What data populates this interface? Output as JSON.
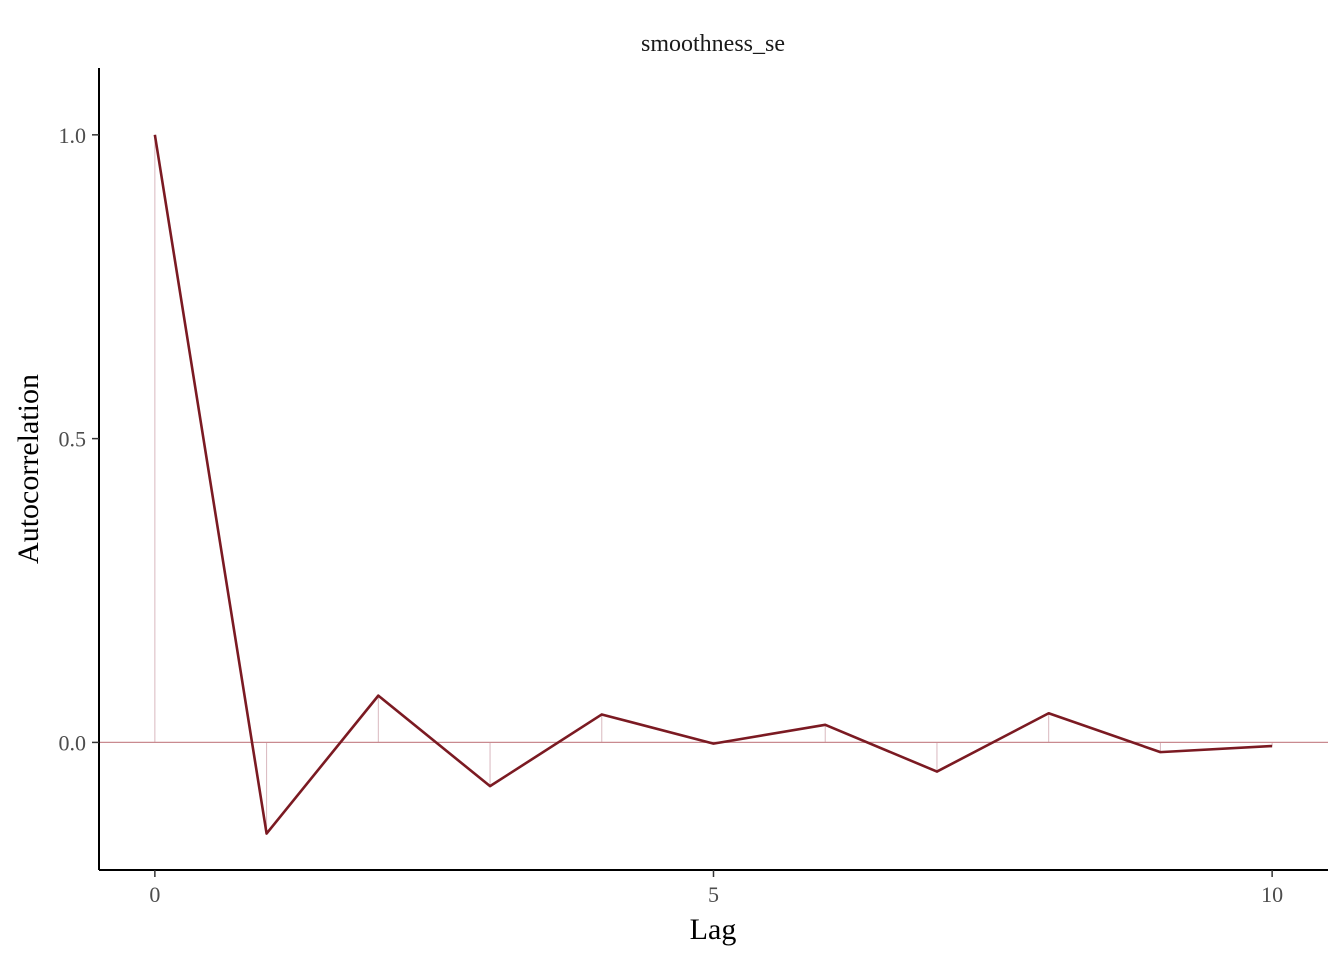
{
  "chart_data": {
    "type": "line",
    "title": "smoothness_se",
    "xlabel": "Lag",
    "ylabel": "Autocorrelation",
    "x": [
      0,
      1,
      2,
      3,
      4,
      5,
      6,
      7,
      8,
      9,
      10
    ],
    "values": [
      1.0,
      -0.15,
      0.077,
      -0.072,
      0.046,
      -0.002,
      0.029,
      -0.048,
      0.048,
      -0.016,
      -0.006
    ],
    "xlim": [
      -0.5,
      10.5
    ],
    "ylim": [
      -0.21,
      1.11
    ],
    "x_ticks": [
      0,
      5,
      10
    ],
    "x_tick_labels": [
      "0",
      "5",
      "10"
    ],
    "y_ticks": [
      0.0,
      0.5,
      1.0
    ],
    "y_tick_labels": [
      "0.0",
      "0.5",
      "1.0"
    ],
    "reference_line": 0,
    "grid": false,
    "colors": {
      "line": "#7b1a22",
      "stems": "#d9b8be",
      "reference": "#c98a90"
    }
  }
}
